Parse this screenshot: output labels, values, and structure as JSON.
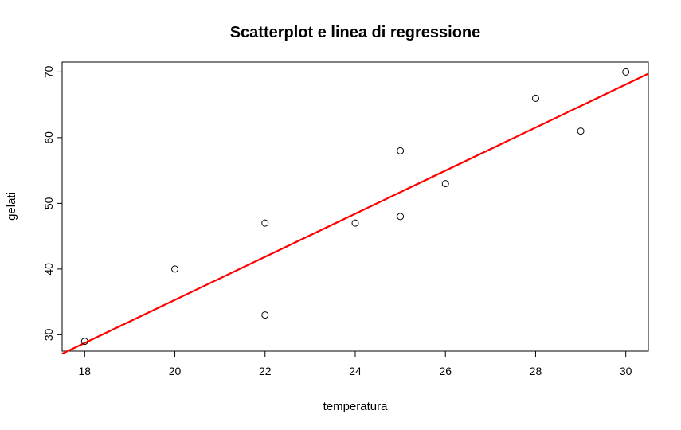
{
  "chart_data": {
    "type": "scatter",
    "title": "Scatterplot e linea di regressione",
    "xlabel": "temperatura",
    "ylabel": "gelati",
    "xlim": [
      17.5,
      30.5
    ],
    "ylim": [
      27.5,
      71.5
    ],
    "xticks": [
      18,
      20,
      22,
      24,
      26,
      28,
      30
    ],
    "yticks": [
      30,
      40,
      50,
      60,
      70
    ],
    "grid": false,
    "points": [
      {
        "x": 18,
        "y": 29
      },
      {
        "x": 20,
        "y": 40
      },
      {
        "x": 22,
        "y": 47
      },
      {
        "x": 22,
        "y": 33
      },
      {
        "x": 24,
        "y": 47
      },
      {
        "x": 25,
        "y": 58
      },
      {
        "x": 25,
        "y": 48
      },
      {
        "x": 26,
        "y": 53
      },
      {
        "x": 28,
        "y": 66
      },
      {
        "x": 29,
        "y": 61
      },
      {
        "x": 30,
        "y": 70
      }
    ],
    "regression_line": {
      "intercept": -30.3,
      "slope": 3.28,
      "color": "#ff0000"
    },
    "point_color": "#000000"
  }
}
